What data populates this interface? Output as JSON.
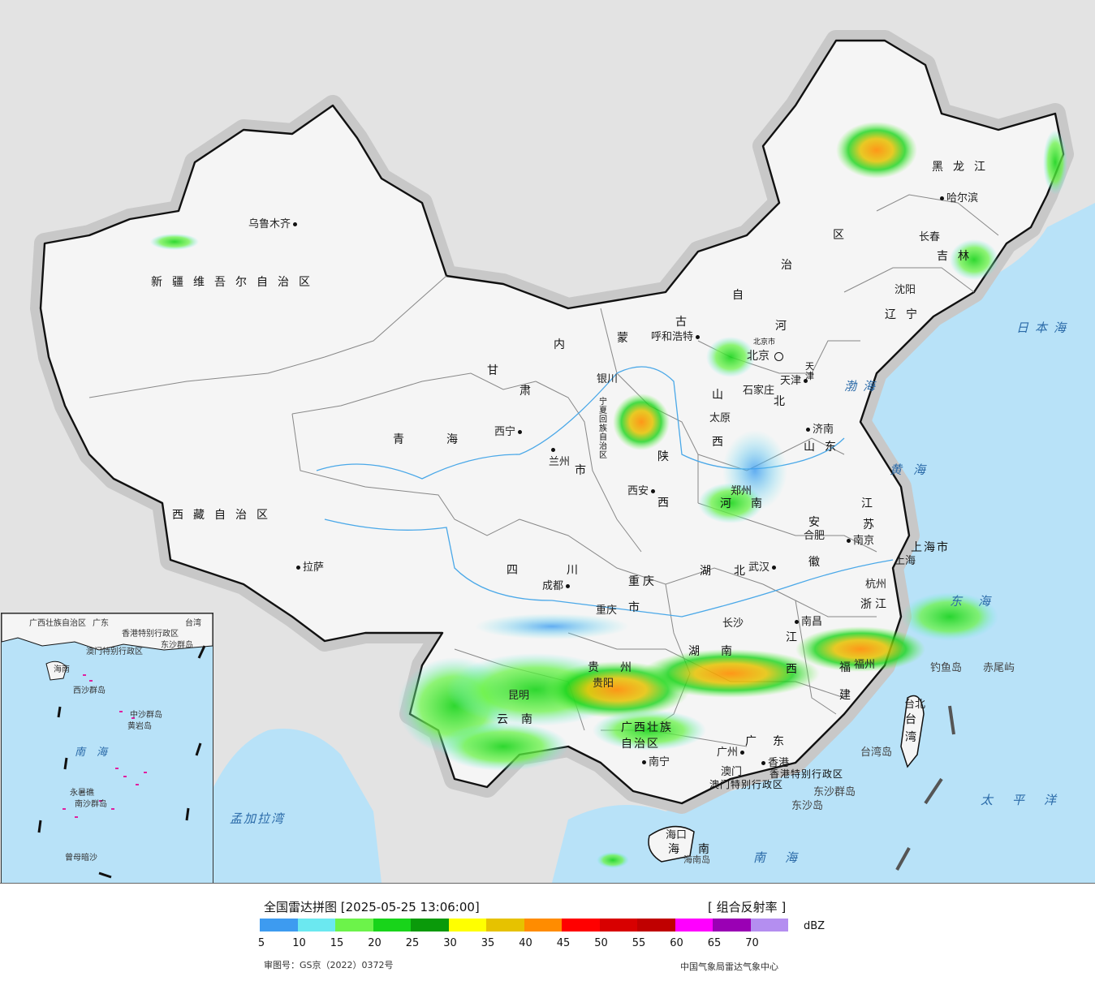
{
  "legend": {
    "title": "全国雷达拼图 [2025-05-25 13:06:00]",
    "product": "[ 组合反射率 ]",
    "unit": "dBZ",
    "colors": [
      "#3d9bf0",
      "#6be8f0",
      "#6cf34a",
      "#18d41a",
      "#0a9a0a",
      "#ffff00",
      "#e6c200",
      "#ff8c00",
      "#ff0000",
      "#d80000",
      "#c00000",
      "#ff00ff",
      "#9a00b4",
      "#b48ef0"
    ],
    "ticks": [
      "5",
      "10",
      "15",
      "20",
      "25",
      "30",
      "35",
      "40",
      "45",
      "50",
      "55",
      "60",
      "65",
      "70"
    ],
    "approval": "审图号：GS京（2022）0372号",
    "org": "中国气象局雷达气象中心"
  },
  "provinces": {
    "xinjiang": "新疆维吾尔自治区",
    "xizang": "西藏自治区",
    "qinghai": "青海",
    "gansu": "甘",
    "gansu2": "肃",
    "neimenggu_nei": "内",
    "neimenggu_meng": "蒙",
    "neimenggu_gu": "古",
    "neimenggu_zi": "自",
    "neimenggu_zhi": "治",
    "neimenggu_qu": "区",
    "heilongjiang": "黑龙江",
    "jilin": "吉林",
    "liaoning": "辽宁",
    "hebei_he": "河",
    "hebei_bei": "北",
    "shanxi_shan": "山",
    "shanxi_xi": "西",
    "shaanxi_shan": "陕",
    "shaanxi_xi": "西",
    "shandong": "山东",
    "henan_he": "河",
    "henan_nan": "南",
    "jiangsu_jiang": "江",
    "jiangsu_su": "苏",
    "anhui_an": "安",
    "anhui_hui": "徽",
    "hubei": "湖北",
    "sichuan": "四川",
    "chongqing_1": "重庆",
    "chongqing_2": "市",
    "shanghai": "上海市",
    "zhejiang": "浙江",
    "jiangxi_jiang": "江",
    "jiangxi_xi": "西",
    "hunan_hu": "湖",
    "hunan_nan": "南",
    "guizhou_gui": "贵",
    "guizhou_zhou": "州",
    "yunnan_yun": "云",
    "yunnan_nan": "南",
    "fujian_fu": "福",
    "fujian_jian": "建",
    "guangxi_1": "广西壮族",
    "guangxi_2": "自治区",
    "guangdong": "广东",
    "hainan_hai": "海",
    "hainan_nan": "南",
    "taiwan_tai": "台",
    "taiwan_wan": "湾",
    "hongkong": "香港特别行政区",
    "macau": "澳门特别行政区",
    "ningxia": "宁夏回族自治区",
    "tianjin": "天津",
    "beijing_shi": "北京市",
    "gansu_shi": "市"
  },
  "cities": {
    "urumqi": "乌鲁木齐",
    "lhasa": "拉萨",
    "xining": "西宁",
    "lanzhou": "兰州",
    "yinchuan": "银川",
    "hohhot": "呼和浩特",
    "beijing": "北京",
    "tianjin": "天津",
    "shijiazhuang": "石家庄",
    "taiyuan": "太原",
    "xian": "西安",
    "zhengzhou": "郑州",
    "jinan": "济南",
    "harbin": "哈尔滨",
    "changchun": "长春",
    "shenyang": "沈阳",
    "hefei": "合肥",
    "nanjing": "南京",
    "shanghai": "上海",
    "hangzhou": "杭州",
    "wuhan": "武汉",
    "chengdu": "成都",
    "chongqing": "重庆",
    "changsha": "长沙",
    "nanchang": "南昌",
    "guiyang": "贵阳",
    "kunming": "昆明",
    "fuzhou": "福州",
    "nanning": "南宁",
    "guangzhou": "广州",
    "hongkong": "香港",
    "macau": "澳门",
    "haikou": "海口",
    "taipei": "台北"
  },
  "seas": {
    "japan_sea": "日本海",
    "bohai": "渤海",
    "yellow_sea": "黄海",
    "east_sea": "东海",
    "pacific": "太平洋",
    "south_sea": "南海",
    "bengal": "孟加拉湾"
  },
  "islands": {
    "diaoyu": "钓鱼岛",
    "chiwei": "赤尾屿",
    "taiwan_island": "台湾岛",
    "dongsha_qundao": "东沙群岛",
    "dongsha_dao": "东沙岛",
    "hainan_dao": "海南岛"
  },
  "inset": {
    "guangxi": "广西壮族自治区",
    "guangdong": "广东",
    "hongkong": "香港特别行政区",
    "macau": "澳门特别行政区",
    "taiwan": "台湾",
    "hainan": "海南",
    "dongsha": "东沙群岛",
    "xisha": "西沙群岛",
    "zhongsha": "中沙群岛",
    "huangyan": "黄岩岛",
    "south_sea": "南海",
    "nansha": "南沙群岛",
    "yongshu": "永暑礁",
    "zengmu": "曾母暗沙"
  }
}
